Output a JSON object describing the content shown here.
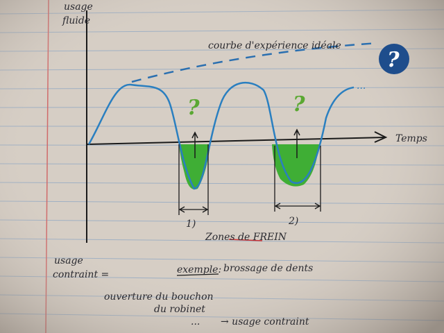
{
  "axes": {
    "y_top_label": [
      "usage",
      "fluide"
    ],
    "y_bottom_label": [
      "usage",
      "contraint ="
    ],
    "x_label": "Temps"
  },
  "annotations": {
    "ideal_curve": "courbe d'expérience idéale",
    "question_marks": [
      "?",
      "?",
      "?"
    ],
    "zones": [
      "1)",
      "2)"
    ],
    "zones_label": "Zones de FREIN"
  },
  "example": {
    "title": "exemple:",
    "text": "brossage de dents",
    "lines": [
      "ouverture du bouchon",
      "du robinet",
      "...",
      "→ usage contraint"
    ]
  }
}
